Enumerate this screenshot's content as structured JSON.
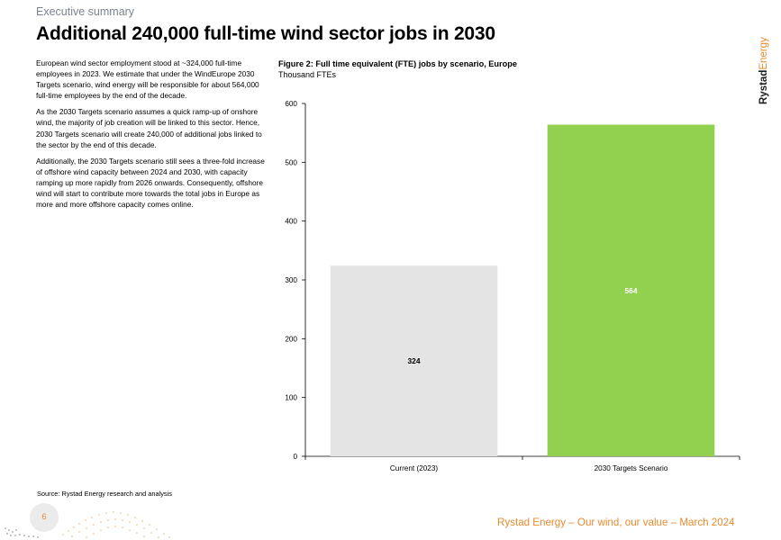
{
  "header": {
    "section": "Executive summary",
    "title": "Additional 240,000 full-time wind sector jobs in 2030"
  },
  "brand": {
    "part1": "Rystad",
    "part2": "Energy",
    "color1": "#1a1a1a",
    "color2": "#e88b2e"
  },
  "body": {
    "paragraphs": [
      "European wind sector employment stood at ~324,000 full-time employees in 2023. We estimate that under the WindEurope 2030 Targets scenario, wind energy will be responsible for about 564,000 full-time employees by the end of the decade.",
      "As the 2030 Targets scenario assumes a quick ramp-up of onshore wind, the majority of job creation will be linked to this sector. Hence, 2030 Targets scenario will create 240,000 of additional jobs linked to the sector by the end of this decade.",
      "Additionally, the 2030 Targets scenario still sees a three-fold increase of offshore wind capacity between 2024 and 2030, with capacity ramping up more rapidly from 2026 onwards. Consequently, offshore wind will start to contribute more towards the total jobs in Europe as more and more offshore capacity comes online."
    ]
  },
  "figure": {
    "title": "Figure 2: Full time equivalent (FTE) jobs by scenario, Europe",
    "unit": "Thousand FTEs"
  },
  "chart_data": {
    "type": "bar",
    "categories": [
      "Current (2023)",
      "2030 Targets Scenario"
    ],
    "values": [
      324,
      564
    ],
    "data_labels": [
      "324",
      "564"
    ],
    "colors": [
      "#e4e4e4",
      "#92d050"
    ],
    "label_colors": [
      "#000000",
      "#ffffff"
    ],
    "ylim": [
      0,
      600
    ],
    "yticks": [
      0,
      100,
      200,
      300,
      400,
      500,
      600
    ],
    "title": "Figure 2: Full time equivalent (FTE) jobs by scenario, Europe",
    "ylabel": "Thousand FTEs",
    "grid": false,
    "legend": "none"
  },
  "source": "Source: Rystad Energy research and analysis",
  "footer": {
    "text": "Rystad Energy – Our wind, our value – March 2024",
    "page_number": "6"
  }
}
